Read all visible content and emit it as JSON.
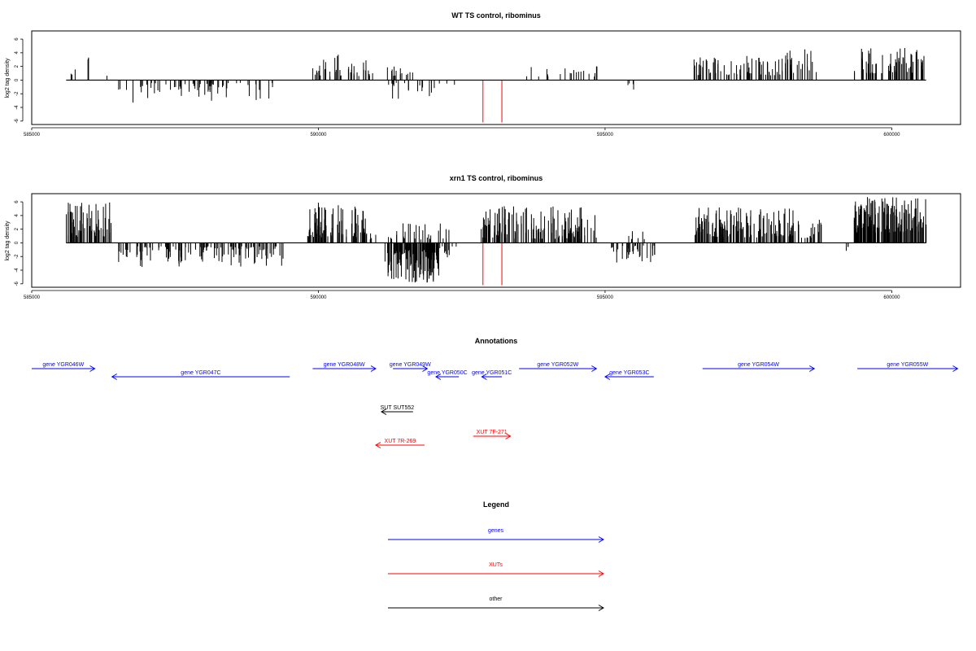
{
  "chart_data": [
    {
      "type": "bar",
      "title": "WT TS control, ribominus",
      "ylabel": "log2 tag density",
      "xlim": [
        585000,
        601200
      ],
      "ylim": [
        -6.5,
        7.2
      ],
      "x_ticks": [
        585000,
        590000,
        595000,
        600000
      ],
      "x_tick_labels": [
        "585000",
        "590000",
        "595000",
        "600000"
      ],
      "y_ticks": [
        -6,
        -4,
        -2,
        0,
        2,
        4,
        6
      ],
      "y_tick_labels": [
        "-6",
        "-4",
        "-2",
        "0",
        "2",
        "4",
        "6"
      ],
      "baseline": [
        585600,
        600600
      ],
      "marker_lines": [
        {
          "x": 592870,
          "y": -6.2,
          "color": "#ff0000"
        },
        {
          "x": 593200,
          "y": -6.2,
          "color": "#ff0000"
        }
      ],
      "regions": [
        {
          "start": 585650,
          "end": 585800,
          "count": 3,
          "min": 0.8,
          "max": 1.8,
          "sign": 1,
          "seed": 11
        },
        {
          "start": 585980,
          "end": 586010,
          "count": 3,
          "min": 3.0,
          "max": 3.7,
          "sign": 1,
          "seed": 12
        },
        {
          "start": 586300,
          "end": 586350,
          "count": 1,
          "min": 0.5,
          "max": 1.0,
          "sign": 1,
          "seed": 13
        },
        {
          "start": 586500,
          "end": 589400,
          "count": 65,
          "min": 0.4,
          "max": 3.3,
          "sign": -1,
          "seed": 14
        },
        {
          "start": 589900,
          "end": 590400,
          "count": 22,
          "min": 0.5,
          "max": 3.8,
          "sign": 1,
          "seed": 15
        },
        {
          "start": 590500,
          "end": 591000,
          "count": 18,
          "min": 0.6,
          "max": 3.0,
          "sign": 1,
          "seed": 16
        },
        {
          "start": 591200,
          "end": 591700,
          "count": 14,
          "min": 0.6,
          "max": 2.5,
          "sign": 1,
          "seed": 17
        },
        {
          "start": 591200,
          "end": 592000,
          "count": 18,
          "min": 0.4,
          "max": 3.1,
          "sign": -1,
          "seed": 18
        },
        {
          "start": 592000,
          "end": 592450,
          "count": 4,
          "min": 0.5,
          "max": 1.4,
          "sign": -1,
          "seed": 19
        },
        {
          "start": 593500,
          "end": 594900,
          "count": 20,
          "min": 0.5,
          "max": 2.1,
          "sign": 1,
          "seed": 20
        },
        {
          "start": 595300,
          "end": 595800,
          "count": 4,
          "min": 0.4,
          "max": 1.6,
          "sign": -1,
          "seed": 21
        },
        {
          "start": 596550,
          "end": 598100,
          "count": 70,
          "min": 0.7,
          "max": 3.6,
          "sign": 1,
          "seed": 22
        },
        {
          "start": 598100,
          "end": 598700,
          "count": 25,
          "min": 1.0,
          "max": 4.9,
          "sign": 1,
          "seed": 23
        },
        {
          "start": 599300,
          "end": 599500,
          "count": 2,
          "min": 0.6,
          "max": 2.5,
          "sign": 1,
          "seed": 24
        },
        {
          "start": 599450,
          "end": 600600,
          "count": 70,
          "min": 1.0,
          "max": 4.7,
          "sign": 1,
          "seed": 25
        }
      ]
    },
    {
      "type": "bar",
      "title": "xrn1 TS control, ribominus",
      "ylabel": "log2 tag density",
      "xlim": [
        585000,
        601200
      ],
      "ylim": [
        -6.5,
        7.2
      ],
      "x_ticks": [
        585000,
        590000,
        595000,
        600000
      ],
      "x_tick_labels": [
        "585000",
        "590000",
        "595000",
        "600000"
      ],
      "y_ticks": [
        -6,
        -4,
        -2,
        0,
        2,
        4,
        6
      ],
      "y_tick_labels": [
        "-6",
        "-4",
        "-2",
        "0",
        "2",
        "4",
        "6"
      ],
      "baseline": [
        585600,
        600600
      ],
      "marker_lines": [
        {
          "x": 592870,
          "y": -6.2,
          "color": "#ff0000"
        },
        {
          "x": 593200,
          "y": -6.2,
          "color": "#ff0000"
        }
      ],
      "regions": [
        {
          "start": 585600,
          "end": 586400,
          "count": 70,
          "min": 0.8,
          "max": 6.0,
          "sign": 1,
          "seed": 31
        },
        {
          "start": 586500,
          "end": 589400,
          "count": 130,
          "min": 0.5,
          "max": 3.6,
          "sign": -1,
          "seed": 32
        },
        {
          "start": 589800,
          "end": 590900,
          "count": 85,
          "min": 0.8,
          "max": 5.9,
          "sign": 1,
          "seed": 33
        },
        {
          "start": 590900,
          "end": 591000,
          "count": 4,
          "min": 0.5,
          "max": 1.5,
          "sign": 1,
          "seed": 34
        },
        {
          "start": 591150,
          "end": 592100,
          "count": 130,
          "min": 1.0,
          "max": 6.1,
          "sign": -1,
          "seed": 35
        },
        {
          "start": 591200,
          "end": 592450,
          "count": 28,
          "min": 0.5,
          "max": 3.5,
          "sign": 1,
          "seed": 36
        },
        {
          "start": 592100,
          "end": 592500,
          "count": 10,
          "min": 0.5,
          "max": 2.5,
          "sign": -1,
          "seed": 37
        },
        {
          "start": 592800,
          "end": 594850,
          "count": 140,
          "min": 0.6,
          "max": 5.4,
          "sign": 1,
          "seed": 38
        },
        {
          "start": 595100,
          "end": 595900,
          "count": 35,
          "min": 0.4,
          "max": 3.1,
          "sign": -1,
          "seed": 39
        },
        {
          "start": 595400,
          "end": 595700,
          "count": 6,
          "min": 0.5,
          "max": 1.9,
          "sign": 1,
          "seed": 40
        },
        {
          "start": 596550,
          "end": 598300,
          "count": 150,
          "min": 0.8,
          "max": 5.2,
          "sign": 1,
          "seed": 41
        },
        {
          "start": 598300,
          "end": 598800,
          "count": 20,
          "min": 0.7,
          "max": 3.4,
          "sign": 1,
          "seed": 42
        },
        {
          "start": 599200,
          "end": 599350,
          "count": 3,
          "min": 0.5,
          "max": 1.5,
          "sign": -1,
          "seed": 43
        },
        {
          "start": 599300,
          "end": 600600,
          "count": 160,
          "min": 1.5,
          "max": 6.7,
          "sign": 1,
          "seed": 44
        }
      ]
    },
    {
      "type": "annotation_track",
      "title": "Annotations",
      "xlim": [
        585000,
        601200
      ],
      "features": [
        {
          "label": "gene YGR046W",
          "start": 585000,
          "end": 586100,
          "strand": "+",
          "row": 0,
          "category": "genes"
        },
        {
          "label": "gene YGR047C",
          "start": 586400,
          "end": 589500,
          "strand": "-",
          "row": 1,
          "category": "genes"
        },
        {
          "label": "gene YGR048W",
          "start": 589900,
          "end": 591000,
          "strand": "+",
          "row": 0,
          "category": "genes"
        },
        {
          "label": "gene YGR049W",
          "start": 591300,
          "end": 591900,
          "strand": "+",
          "row": 0,
          "category": "genes"
        },
        {
          "label": "gene YGR050C",
          "start": 592050,
          "end": 592450,
          "strand": "-",
          "row": 1,
          "category": "genes"
        },
        {
          "label": "gene YGR051C",
          "start": 592850,
          "end": 593200,
          "strand": "-",
          "row": 1,
          "category": "genes"
        },
        {
          "label": "gene YGR052W",
          "start": 593500,
          "end": 594850,
          "strand": "+",
          "row": 0,
          "category": "genes"
        },
        {
          "label": "gene YGR053C",
          "start": 595000,
          "end": 595850,
          "strand": "-",
          "row": 1,
          "category": "genes"
        },
        {
          "label": "gene YGR054W",
          "start": 596700,
          "end": 598650,
          "strand": "+",
          "row": 0,
          "category": "genes"
        },
        {
          "label": "gene YGR055W",
          "start": 599400,
          "end": 601150,
          "strand": "+",
          "row": 0,
          "category": "genes"
        },
        {
          "label": "SUT SUT552",
          "start": 591100,
          "end": 591650,
          "strand": "-",
          "row": 2,
          "category": "other"
        },
        {
          "label": "XUT 7F-271",
          "start": 592700,
          "end": 593350,
          "strand": "+",
          "row": 3,
          "category": "XUTs"
        },
        {
          "label": "XUT 7R-269",
          "start": 591000,
          "end": 591850,
          "strand": "-",
          "row": 4,
          "category": "XUTs"
        }
      ]
    }
  ],
  "legend": {
    "title": "Legend",
    "items": [
      {
        "label": "genes",
        "color": "#0000ff"
      },
      {
        "label": "XUTs",
        "color": "#ff0000"
      },
      {
        "label": "other",
        "color": "#000000"
      }
    ]
  },
  "colors": {
    "genes": "#0000ff",
    "XUTs": "#ff0000",
    "other": "#000000",
    "signal": "#000000",
    "marker": "#ff0000"
  }
}
